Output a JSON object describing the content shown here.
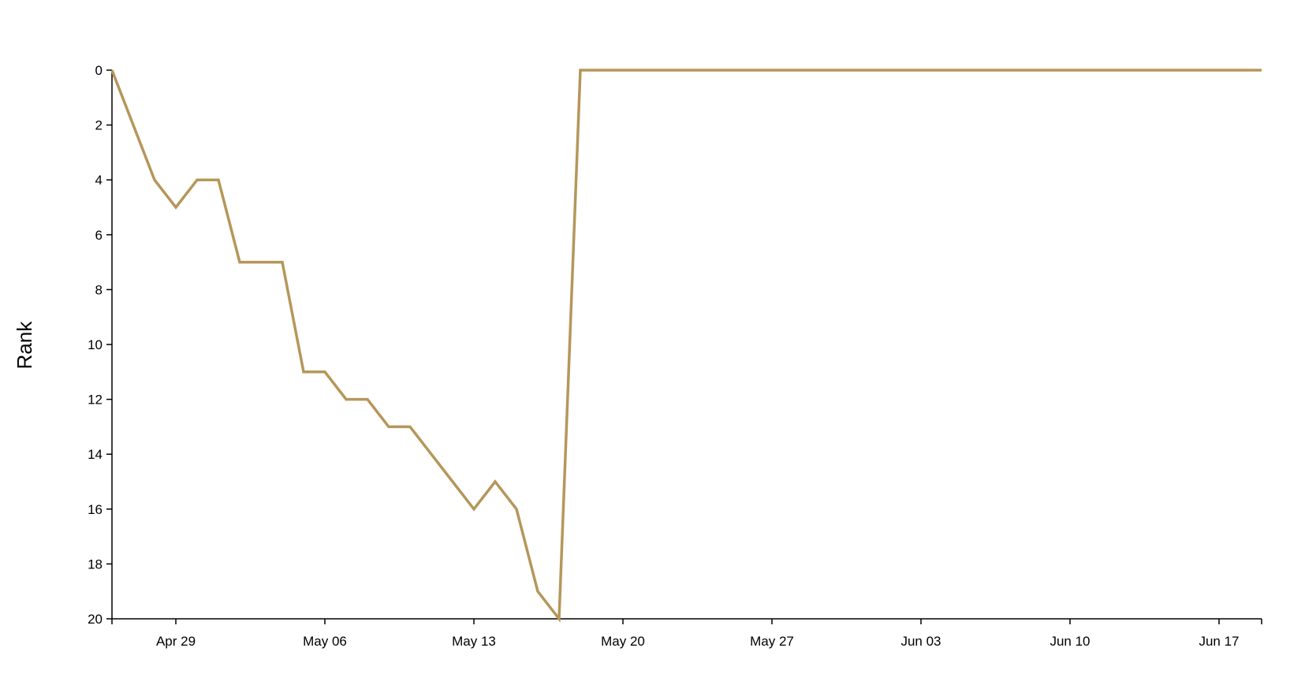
{
  "chart_data": {
    "type": "line",
    "title": "",
    "xlabel": "",
    "ylabel": "Rank",
    "y_inverted": true,
    "ylim": [
      0,
      20
    ],
    "xlim": [
      "2024-04-26",
      "2024-06-19"
    ],
    "grid": false,
    "legend": "none",
    "x_ticks": [
      {
        "date": "2024-04-29",
        "label": "Apr 29"
      },
      {
        "date": "2024-05-06",
        "label": "May 06"
      },
      {
        "date": "2024-05-13",
        "label": "May 13"
      },
      {
        "date": "2024-05-20",
        "label": "May 20"
      },
      {
        "date": "2024-05-27",
        "label": "May 27"
      },
      {
        "date": "2024-06-03",
        "label": "Jun 03"
      },
      {
        "date": "2024-06-10",
        "label": "Jun 10"
      },
      {
        "date": "2024-06-17",
        "label": "Jun 17"
      }
    ],
    "y_ticks": [
      0,
      2,
      4,
      6,
      8,
      10,
      12,
      14,
      16,
      18,
      20
    ],
    "series": [
      {
        "color": "#b5975a",
        "points": [
          {
            "x": "2024-04-26",
            "y": 0
          },
          {
            "x": "2024-04-27",
            "y": 2
          },
          {
            "x": "2024-04-28",
            "y": 4
          },
          {
            "x": "2024-04-29",
            "y": 5
          },
          {
            "x": "2024-04-30",
            "y": 4
          },
          {
            "x": "2024-05-01",
            "y": 4
          },
          {
            "x": "2024-05-02",
            "y": 7
          },
          {
            "x": "2024-05-03",
            "y": 7
          },
          {
            "x": "2024-05-04",
            "y": 7
          },
          {
            "x": "2024-05-05",
            "y": 11
          },
          {
            "x": "2024-05-06",
            "y": 11
          },
          {
            "x": "2024-05-07",
            "y": 12
          },
          {
            "x": "2024-05-08",
            "y": 12
          },
          {
            "x": "2024-05-09",
            "y": 13
          },
          {
            "x": "2024-05-10",
            "y": 13
          },
          {
            "x": "2024-05-11",
            "y": 14
          },
          {
            "x": "2024-05-12",
            "y": 15
          },
          {
            "x": "2024-05-13",
            "y": 16
          },
          {
            "x": "2024-05-14",
            "y": 15
          },
          {
            "x": "2024-05-15",
            "y": 16
          },
          {
            "x": "2024-05-16",
            "y": 19
          },
          {
            "x": "2024-05-17",
            "y": 20
          },
          {
            "x": "2024-05-18",
            "y": 0
          },
          {
            "x": "2024-06-19",
            "y": 0
          }
        ]
      }
    ]
  }
}
